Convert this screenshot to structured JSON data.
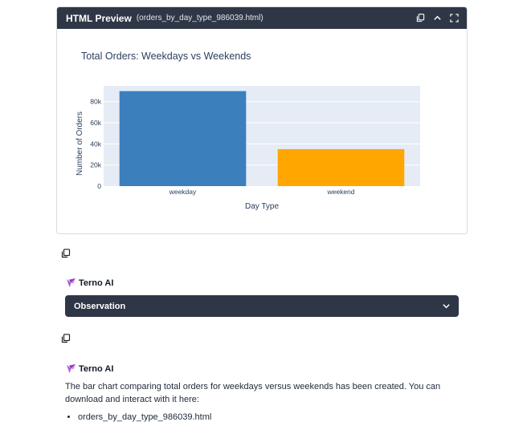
{
  "preview": {
    "title": "HTML Preview",
    "filename": "(orders_by_day_type_986039.html)",
    "icons": [
      "copy-icon",
      "chevron-up-icon",
      "expand-icon"
    ]
  },
  "chart_data": {
    "type": "bar",
    "title": "Total Orders: Weekdays vs Weekends",
    "xlabel": "Day Type",
    "ylabel": "Number of Orders",
    "categories": [
      "weekday",
      "weekend"
    ],
    "values": [
      90000,
      35000
    ],
    "colors": [
      "#3b7fbd",
      "#ffa600"
    ],
    "ylim": [
      0,
      95000
    ],
    "yticks": [
      0,
      20000,
      40000,
      60000,
      80000
    ],
    "ytick_labels": [
      "0",
      "20k",
      "40k",
      "60k",
      "80k"
    ],
    "grid": true,
    "plot_bg": "#e5ecf6"
  },
  "agent": {
    "name": "Terno AI",
    "logo_color": "#b45ad8"
  },
  "observation": {
    "label": "Observation"
  },
  "message": {
    "text": "The bar chart comparing total orders for weekdays versus weekends has been created. You can download and interact with it here:",
    "files": [
      "orders_by_day_type_986039.html"
    ]
  },
  "colors": {
    "header_bg": "#2f3747",
    "accent": "#b45ad8"
  }
}
